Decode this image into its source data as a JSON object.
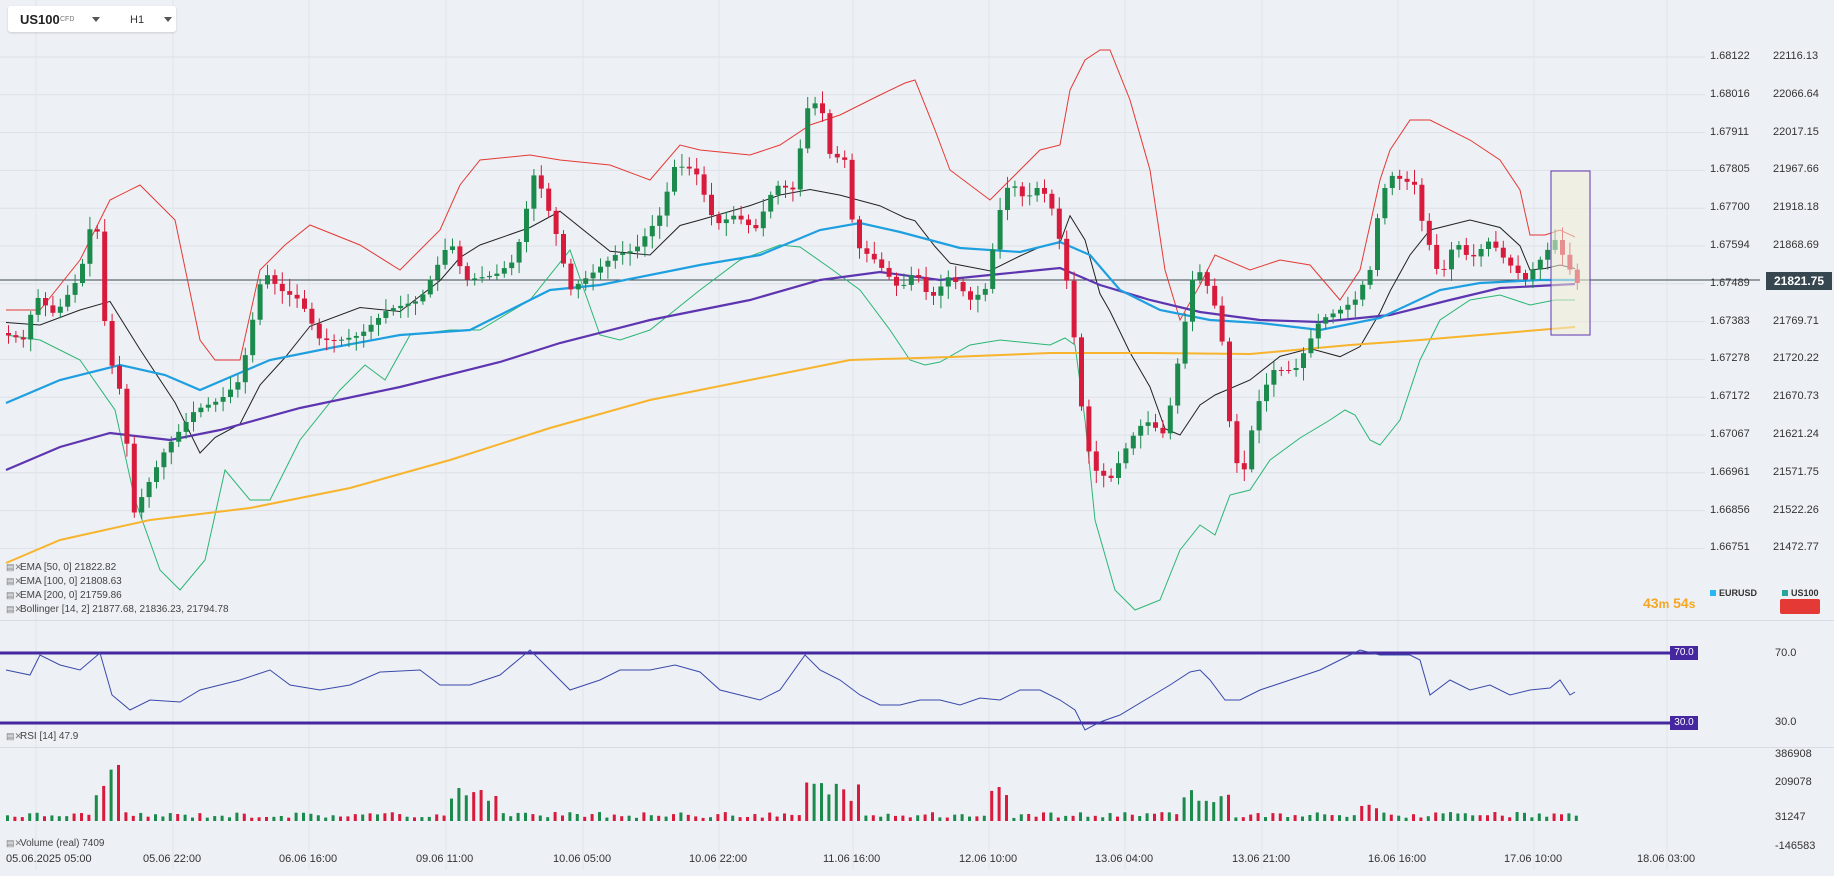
{
  "symbol": {
    "name": "US100",
    "type": "CFD",
    "timeframe": "H1"
  },
  "price_axis": [
    "1.68122",
    "1.68016",
    "1.67911",
    "1.67805",
    "1.67700",
    "1.67594",
    "1.67489",
    "1.67383",
    "1.67278",
    "1.67172",
    "1.67067",
    "1.66961",
    "1.66856",
    "1.66751"
  ],
  "value_axis": [
    "22116.13",
    "22066.64",
    "22017.15",
    "21967.66",
    "21918.18",
    "21868.69",
    "21821.75",
    "21769.71",
    "21720.22",
    "21670.73",
    "21621.24",
    "21571.75",
    "21522.26",
    "21472.77"
  ],
  "current_price": "21821.75",
  "legends": {
    "ema50": "EMA [50, 0] 21822.82",
    "ema100": "EMA [100, 0] 21808.63",
    "ema200": "EMA [200, 0] 21759.86",
    "bollinger": "Bollinger [14, 2] 21877.68, 21836.23, 21794.78",
    "rsi": "RSI [14] 47.9",
    "volume": "Volume (real) 7409"
  },
  "timer": {
    "minutes": "43",
    "m_unit": "m",
    "seconds": "54",
    "s_unit": "s"
  },
  "symbols_legend": [
    {
      "name": "EURUSD",
      "color": "#29b6f6"
    },
    {
      "name": "US100",
      "color": "#26a69a"
    }
  ],
  "rsi": {
    "upper": "70.0",
    "lower": "30.0",
    "axis_upper": "70.0",
    "axis_lower": "30.0"
  },
  "volume_axis": [
    "386908",
    "209078",
    "31247",
    "-146583"
  ],
  "time_axis": [
    "05.06.2025 05:00",
    "05.06 22:00",
    "06.06 16:00",
    "09.06 11:00",
    "10.06 05:00",
    "10.06 22:00",
    "11.06 16:00",
    "12.06 10:00",
    "13.06 04:00",
    "13.06 21:00",
    "16.06 16:00",
    "17.06 10:00",
    "18.06 03:00"
  ],
  "colors": {
    "bull": "#1b8a4c",
    "bear": "#d81b3c",
    "ema50": "#1e9fe0",
    "ema100": "#5e35b1",
    "ema200": "#f7b42c",
    "bb_upper": "#e53935",
    "bb_mid": "#222222",
    "bb_lower": "#2bb673",
    "rsi_line": "#3949ab",
    "rsi_level": "#4527a0"
  }
}
